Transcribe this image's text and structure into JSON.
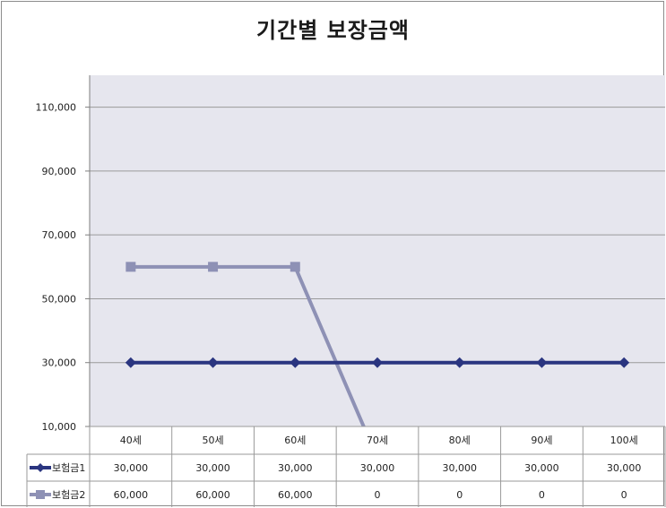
{
  "chart_data": {
    "type": "line",
    "title": "기간별 보장금액",
    "categories": [
      "40세",
      "50세",
      "60세",
      "70세",
      "80세",
      "90세",
      "100세"
    ],
    "series": [
      {
        "name": "보험금1",
        "values": [
          30000,
          30000,
          30000,
          30000,
          30000,
          30000,
          30000
        ],
        "color": "#2a3580",
        "marker": "diamond"
      },
      {
        "name": "보험금2",
        "values": [
          60000,
          60000,
          60000,
          0,
          0,
          0,
          0
        ],
        "color": "#8e91b5",
        "marker": "square"
      }
    ],
    "table_values": [
      [
        "30,000",
        "30,000",
        "30,000",
        "30,000",
        "30,000",
        "30,000",
        "30,000"
      ],
      [
        "60,000",
        "60,000",
        "60,000",
        "0",
        "0",
        "0",
        "0"
      ]
    ],
    "ylim": [
      10000,
      120000
    ],
    "yticks": [
      10000,
      30000,
      50000,
      70000,
      90000,
      110000
    ],
    "ytick_labels": [
      "10,000",
      "30,000",
      "50,000",
      "70,000",
      "90,000",
      "110,000"
    ],
    "grid": true,
    "legend": "data-table-left",
    "plot_background": "#e6e6ee"
  }
}
